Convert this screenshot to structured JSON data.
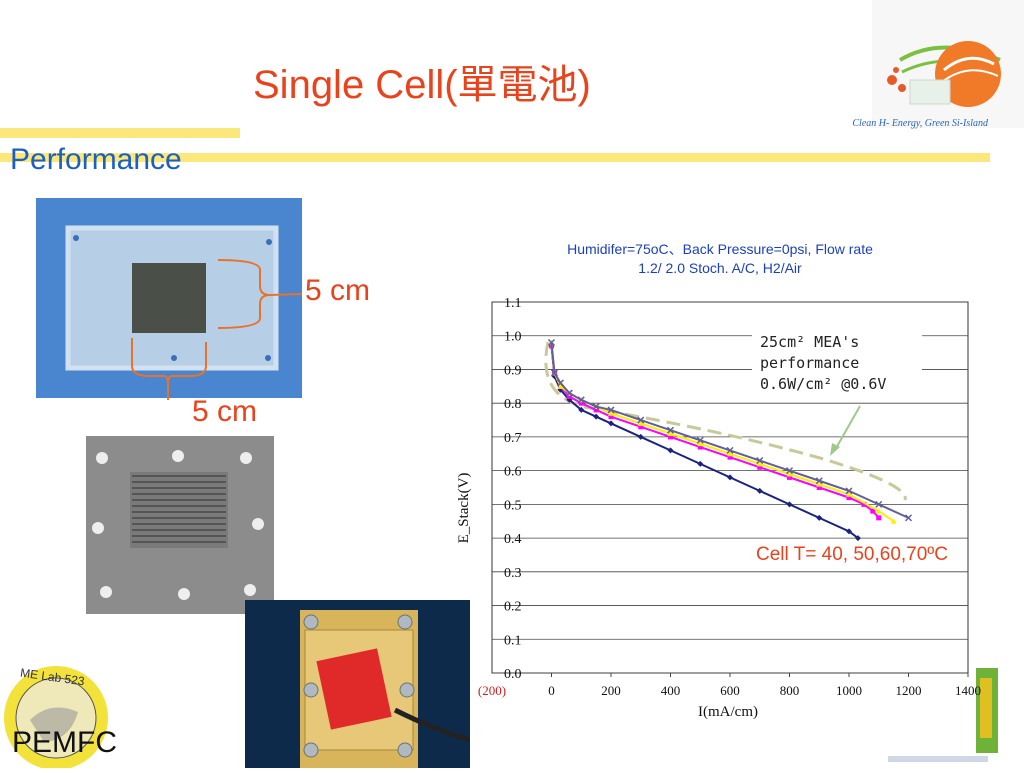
{
  "slide": {
    "title": "Single Cell(單電池)",
    "subtitle": "Performance",
    "tagline": "Clean H- Energy, Green Si-Island",
    "dimension_top": "5 cm",
    "dimension_bottom": "5 cm",
    "footer_label": "PEMFC",
    "logo_text": "ME Lab 523"
  },
  "chart_data": {
    "type": "line",
    "title_line1": "Humidifer=75oC、Back Pressure=0psi, Flow rate",
    "title_line2": "1.2/ 2.0 Stoch. A/C, H2/Air",
    "xlabel": "I(mA/cm)",
    "ylabel": "E_Stack(V)",
    "xlim": [
      -200,
      1400
    ],
    "ylim": [
      0,
      1.1
    ],
    "x_ticks": [
      "(200)",
      "0",
      "200",
      "400",
      "600",
      "800",
      "1000",
      "1200",
      "1400"
    ],
    "y_ticks": [
      "0.0",
      "0.1",
      "0.2",
      "0.3",
      "0.4",
      "0.5",
      "0.6",
      "0.7",
      "0.8",
      "0.9",
      "1.0",
      "1.1"
    ],
    "annotation_lines": [
      "25cm² MEA's",
      "performance",
      "0.6W/cm² @0.6V"
    ],
    "cell_temperature_label": "Cell T= 40, 50,60,70ºC",
    "series": [
      {
        "color": "#1a237e",
        "marker": "diamond",
        "x": [
          0,
          10,
          30,
          60,
          100,
          150,
          200,
          300,
          400,
          500,
          600,
          700,
          800,
          900,
          1000,
          1030
        ],
        "y": [
          0.97,
          0.88,
          0.84,
          0.81,
          0.78,
          0.76,
          0.74,
          0.7,
          0.66,
          0.62,
          0.58,
          0.54,
          0.5,
          0.46,
          0.42,
          0.4
        ]
      },
      {
        "color": "#ff00ff",
        "marker": "square",
        "x": [
          0,
          10,
          30,
          60,
          100,
          150,
          200,
          300,
          400,
          500,
          600,
          700,
          800,
          900,
          1000,
          1050,
          1080,
          1100
        ],
        "y": [
          0.97,
          0.89,
          0.85,
          0.82,
          0.8,
          0.78,
          0.76,
          0.73,
          0.7,
          0.67,
          0.64,
          0.61,
          0.58,
          0.55,
          0.52,
          0.5,
          0.48,
          0.46
        ]
      },
      {
        "color": "#ffee00",
        "marker": "triangle",
        "x": [
          0,
          10,
          30,
          60,
          100,
          150,
          200,
          300,
          400,
          500,
          600,
          700,
          800,
          900,
          1000,
          1100,
          1150
        ],
        "y": [
          0.98,
          0.89,
          0.85,
          0.83,
          0.81,
          0.79,
          0.77,
          0.74,
          0.71,
          0.68,
          0.65,
          0.62,
          0.59,
          0.56,
          0.53,
          0.48,
          0.45
        ]
      },
      {
        "color": "#5f5f99",
        "marker": "x",
        "x": [
          0,
          10,
          30,
          60,
          100,
          150,
          200,
          300,
          400,
          500,
          600,
          700,
          800,
          900,
          1000,
          1100,
          1200
        ],
        "y": [
          0.98,
          0.89,
          0.86,
          0.83,
          0.81,
          0.79,
          0.78,
          0.75,
          0.72,
          0.69,
          0.66,
          0.63,
          0.6,
          0.57,
          0.54,
          0.5,
          0.46
        ]
      }
    ]
  }
}
